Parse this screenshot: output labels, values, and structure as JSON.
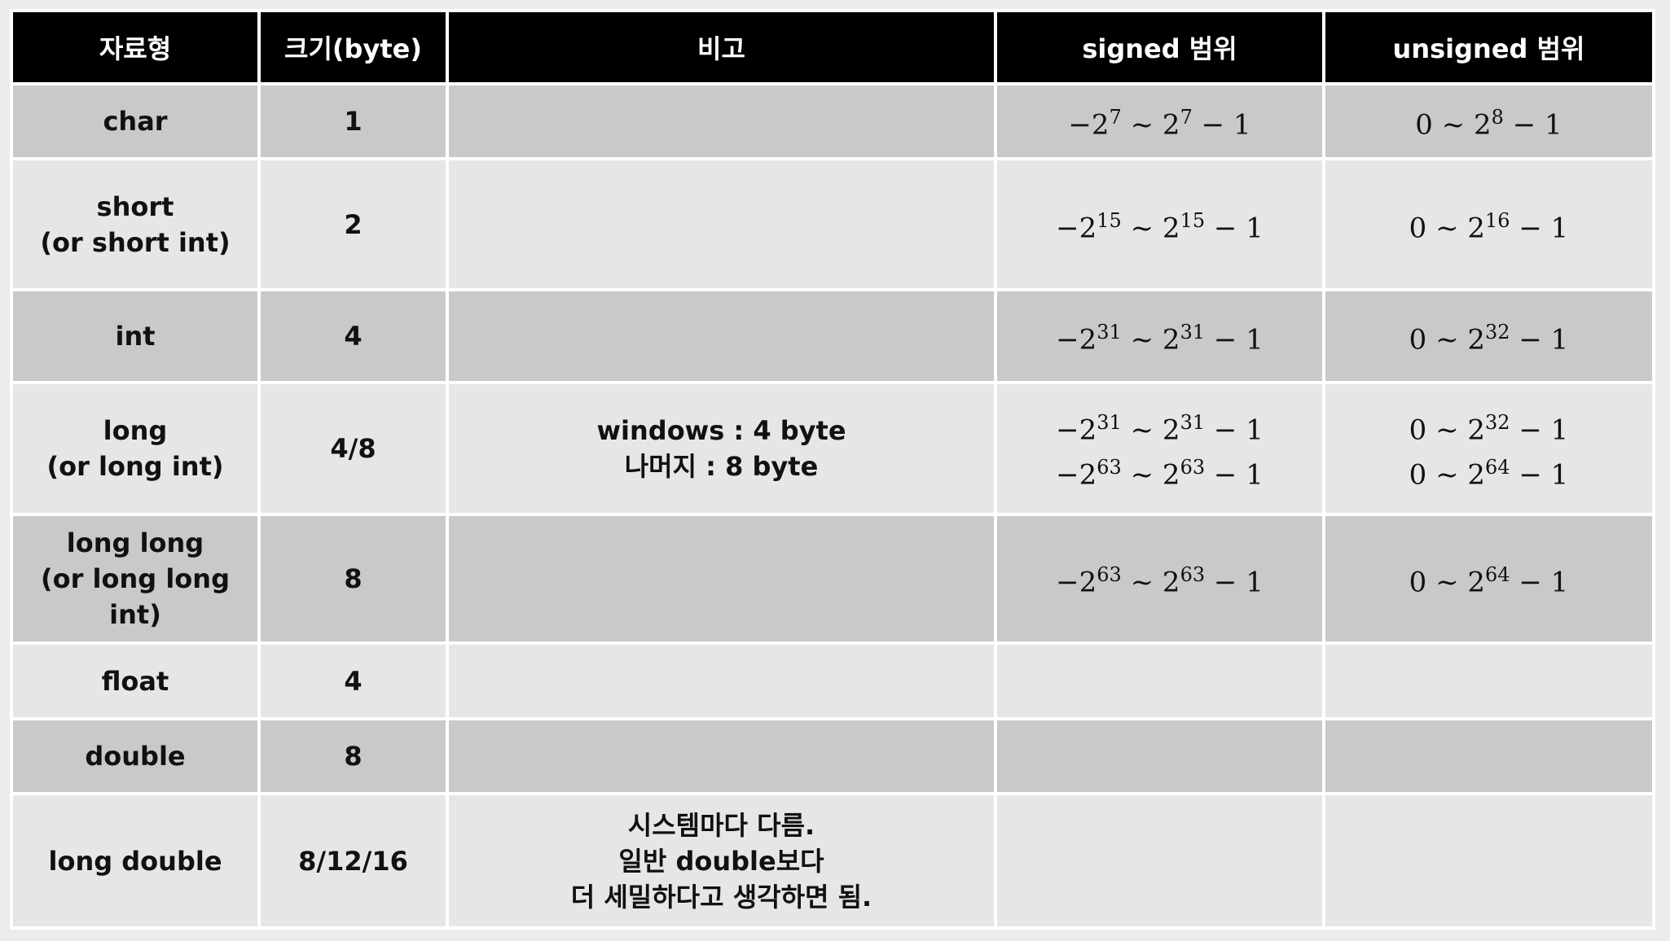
{
  "headers": [
    "자료형",
    "크기(byte)",
    "비고",
    "signed 범위",
    "unsigned 범위"
  ],
  "rows": [
    {
      "type": [
        "char"
      ],
      "size": "1",
      "note": [],
      "signed": [
        [
          "−2",
          "7",
          " ~ 2",
          "7",
          " − 1"
        ]
      ],
      "unsigned": [
        [
          "0 ~ 2",
          "8",
          " − 1"
        ]
      ]
    },
    {
      "type": [
        "short",
        "(or short int)"
      ],
      "size": "2",
      "note": [],
      "signed": [
        [
          "−2",
          "15",
          " ~ 2",
          "15",
          " − 1"
        ]
      ],
      "unsigned": [
        [
          "0 ~ 2",
          "16",
          " − 1"
        ]
      ]
    },
    {
      "type": [
        "int"
      ],
      "size": "4",
      "note": [],
      "signed": [
        [
          "−2",
          "31",
          " ~ 2",
          "31",
          " − 1"
        ]
      ],
      "unsigned": [
        [
          "0 ~ 2",
          "32",
          " − 1"
        ]
      ]
    },
    {
      "type": [
        "long",
        "(or long int)"
      ],
      "size": "4/8",
      "note": [
        "windows : 4 byte",
        "나머지 : 8 byte"
      ],
      "signed": [
        [
          "−2",
          "31",
          " ~ 2",
          "31",
          " − 1"
        ],
        [
          "−2",
          "63",
          " ~ 2",
          "63",
          " − 1"
        ]
      ],
      "unsigned": [
        [
          "0 ~ 2",
          "32",
          " − 1"
        ],
        [
          "0 ~ 2",
          "64",
          " − 1"
        ]
      ]
    },
    {
      "type": [
        "long long",
        "(or long long int)"
      ],
      "size": "8",
      "note": [],
      "signed": [
        [
          "−2",
          "63",
          " ~ 2",
          "63",
          " − 1"
        ]
      ],
      "unsigned": [
        [
          "0 ~ 2",
          "64",
          " − 1"
        ]
      ]
    },
    {
      "type": [
        "float"
      ],
      "size": "4",
      "note": [],
      "signed": [],
      "unsigned": []
    },
    {
      "type": [
        "double"
      ],
      "size": "8",
      "note": [],
      "signed": [],
      "unsigned": []
    },
    {
      "type": [
        "long double"
      ],
      "size": "8/12/16",
      "note": [
        "시스템마다 다름.",
        "일반 double보다",
        "더 세밀하다고 생각하면 됨."
      ],
      "signed": [],
      "unsigned": []
    }
  ],
  "colors": {
    "header_bg": "#000000",
    "row_dark": "#c9c9c9",
    "row_light": "#e6e6e6"
  }
}
